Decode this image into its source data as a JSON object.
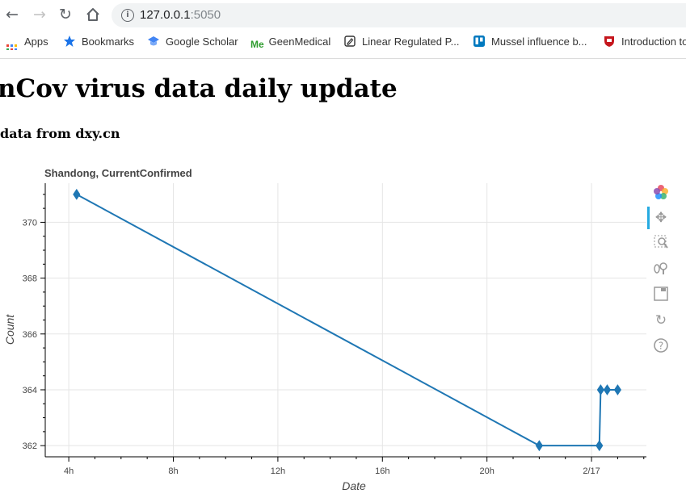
{
  "browser": {
    "url_host": "127.0.0.1",
    "url_port": ":5050",
    "bookmarks": [
      "Apps",
      "Bookmarks",
      "Google Scholar",
      "GeenMedical",
      "Linear Regulated P...",
      "Mussel influence b...",
      "Introduction to"
    ]
  },
  "page": {
    "title": "nCov virus data daily update",
    "subtitle": "data from dxy.cn"
  },
  "chart_data": {
    "type": "line",
    "title": "Shandong, CurrentConfirmed",
    "xlabel": "Date",
    "ylabel": "Count",
    "x_tick_labels": [
      "4h",
      "8h",
      "12h",
      "16h",
      "20h",
      "2/17"
    ],
    "x_ticks_hours": [
      4,
      8,
      12,
      16,
      20,
      24
    ],
    "xlim_hours": [
      3.1,
      26.1
    ],
    "y_ticks": [
      362,
      364,
      366,
      368,
      370
    ],
    "ylim": [
      361.6,
      371.4
    ],
    "marker": "diamond",
    "grid": true,
    "series": [
      {
        "x_hours": [
          4.3,
          22.0,
          24.3,
          24.35,
          24.6,
          25.0
        ],
        "values": [
          371,
          362,
          362,
          364,
          364,
          364
        ]
      }
    ]
  },
  "colors": {
    "line": "#1f77b4",
    "grid": "#e5e5e5",
    "axis": "#000000"
  },
  "toolbar_icons": [
    "bokeh-logo-icon",
    "pan-icon",
    "box-zoom-icon",
    "wheel-zoom-icon",
    "save-icon",
    "reset-icon",
    "help-icon"
  ]
}
